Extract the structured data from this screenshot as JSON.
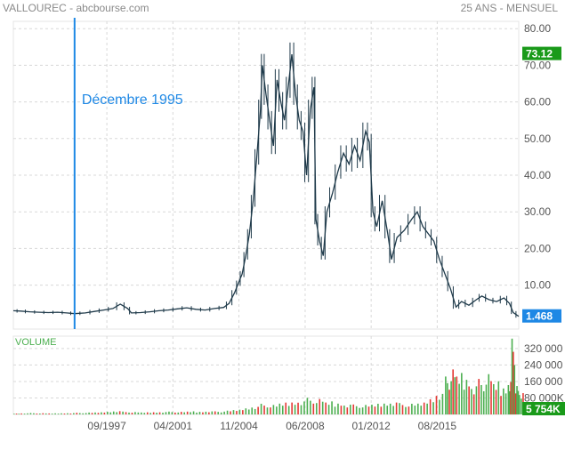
{
  "header": {
    "title": "VALLOUREC - abcbourse.com",
    "period": "25 ANS - MENSUEL"
  },
  "colors": {
    "grid": "#d8d8d8",
    "price_line": "#1f3a4a",
    "annotation": "#1e88e5",
    "volume_up": "#4caf50",
    "volume_down": "#e53935",
    "last_price_badge": "#1a9a1a",
    "last_price_badge_low": "#1e88e5",
    "volume_label": "#4caf50",
    "axis_text": "#555555"
  },
  "chart_data": [
    {
      "type": "line",
      "title": "VALLOUREC - abcbourse.com",
      "ylim": [
        -2,
        82
      ],
      "y_ticks": [
        "80.00",
        "70.00",
        "60.00",
        "50.00",
        "40.00",
        "30.00",
        "20.00",
        "10.00"
      ],
      "y_tick_values": [
        80,
        70,
        60,
        50,
        40,
        30,
        20,
        10
      ],
      "x_labels": [
        "09/1997",
        "04/2001",
        "11/2004",
        "06/2008",
        "01/2012",
        "08/2015"
      ],
      "x_label_dates": [
        1997.67,
        2001.25,
        2004.83,
        2008.42,
        2012.0,
        2015.58
      ],
      "x_range": [
        1992.6,
        2020.0
      ],
      "badges": [
        {
          "label": "73.12",
          "value": 73.12,
          "color": "#1a9a1a"
        },
        {
          "label": "1.468",
          "value": 1.468,
          "color": "#1e88e5"
        }
      ],
      "annotation": {
        "label": "Décembre 1995",
        "date": 1995.92
      },
      "points": [
        [
          1992.6,
          3.0
        ],
        [
          1993.0,
          2.9
        ],
        [
          1993.5,
          2.7
        ],
        [
          1994.0,
          2.6
        ],
        [
          1994.5,
          2.5
        ],
        [
          1995.0,
          2.6
        ],
        [
          1995.5,
          2.4
        ],
        [
          1995.92,
          2.2
        ],
        [
          1996.5,
          2.4
        ],
        [
          1997.0,
          2.8
        ],
        [
          1997.5,
          3.2
        ],
        [
          1998.0,
          3.6
        ],
        [
          1998.4,
          4.8
        ],
        [
          1998.8,
          3.6
        ],
        [
          1999.0,
          2.4
        ],
        [
          1999.5,
          2.5
        ],
        [
          2000.0,
          2.7
        ],
        [
          2000.5,
          3.0
        ],
        [
          2001.0,
          3.2
        ],
        [
          2001.5,
          3.5
        ],
        [
          2002.0,
          3.8
        ],
        [
          2002.5,
          3.4
        ],
        [
          2003.0,
          3.2
        ],
        [
          2003.5,
          3.6
        ],
        [
          2004.0,
          3.9
        ],
        [
          2004.3,
          5.0
        ],
        [
          2004.6,
          8.0
        ],
        [
          2004.8,
          10.5
        ],
        [
          2005.0,
          13.0
        ],
        [
          2005.2,
          18.0
        ],
        [
          2005.4,
          24.0
        ],
        [
          2005.6,
          33.0
        ],
        [
          2005.8,
          45.0
        ],
        [
          2006.0,
          58.0
        ],
        [
          2006.1,
          70.0
        ],
        [
          2006.3,
          62.0
        ],
        [
          2006.5,
          55.0
        ],
        [
          2006.7,
          48.0
        ],
        [
          2006.9,
          66.0
        ],
        [
          2007.1,
          60.0
        ],
        [
          2007.3,
          55.0
        ],
        [
          2007.5,
          64.0
        ],
        [
          2007.7,
          73.0
        ],
        [
          2007.9,
          62.0
        ],
        [
          2008.1,
          55.0
        ],
        [
          2008.3,
          52.0
        ],
        [
          2008.5,
          40.0
        ],
        [
          2008.7,
          58.0
        ],
        [
          2008.9,
          64.0
        ],
        [
          2009.0,
          28.0
        ],
        [
          2009.2,
          22.0
        ],
        [
          2009.4,
          18.0
        ],
        [
          2009.6,
          30.0
        ],
        [
          2009.9,
          35.0
        ],
        [
          2010.2,
          41.0
        ],
        [
          2010.5,
          46.0
        ],
        [
          2010.8,
          43.0
        ],
        [
          2011.1,
          48.0
        ],
        [
          2011.4,
          44.0
        ],
        [
          2011.7,
          52.0
        ],
        [
          2011.9,
          49.0
        ],
        [
          2012.1,
          30.0
        ],
        [
          2012.3,
          26.0
        ],
        [
          2012.6,
          33.0
        ],
        [
          2012.9,
          24.0
        ],
        [
          2013.1,
          17.0
        ],
        [
          2013.4,
          23.0
        ],
        [
          2013.8,
          25.0
        ],
        [
          2014.2,
          28.0
        ],
        [
          2014.5,
          30.0
        ],
        [
          2014.8,
          26.0
        ],
        [
          2015.1,
          24.0
        ],
        [
          2015.4,
          22.0
        ],
        [
          2015.7,
          17.0
        ],
        [
          2016.0,
          13.0
        ],
        [
          2016.3,
          9.0
        ],
        [
          2016.6,
          4.0
        ],
        [
          2016.9,
          5.5
        ],
        [
          2017.3,
          4.5
        ],
        [
          2017.7,
          6.0
        ],
        [
          2018.0,
          7.0
        ],
        [
          2018.4,
          6.0
        ],
        [
          2018.8,
          5.5
        ],
        [
          2019.2,
          6.5
        ],
        [
          2019.5,
          5.0
        ],
        [
          2019.7,
          2.5
        ],
        [
          2020.0,
          1.468
        ]
      ]
    },
    {
      "type": "bar",
      "title": "VOLUME",
      "ylim": [
        0,
        380000
      ],
      "y_ticks": [
        "320 000",
        "240 000",
        "160 000",
        "80 000K"
      ],
      "y_tick_values": [
        320000,
        240000,
        160000,
        80000
      ],
      "badge": {
        "label": "5 754K",
        "color": "#1a9a1a"
      },
      "volumes": [
        [
          1992.6,
          4000
        ],
        [
          1993.0,
          5000
        ],
        [
          1993.5,
          6000
        ],
        [
          1994.0,
          5000
        ],
        [
          1994.5,
          4500
        ],
        [
          1995.0,
          5000
        ],
        [
          1995.5,
          6000
        ],
        [
          1996.0,
          7000
        ],
        [
          1996.5,
          8000
        ],
        [
          1997.0,
          9000
        ],
        [
          1997.5,
          12000
        ],
        [
          1998.0,
          15000
        ],
        [
          1998.5,
          12000
        ],
        [
          1999.0,
          10000
        ],
        [
          1999.5,
          9000
        ],
        [
          2000.0,
          10000
        ],
        [
          2000.5,
          11000
        ],
        [
          2001.0,
          12000
        ],
        [
          2001.5,
          11000
        ],
        [
          2002.0,
          13000
        ],
        [
          2002.5,
          12000
        ],
        [
          2003.0,
          14000
        ],
        [
          2003.5,
          13000
        ],
        [
          2004.0,
          16000
        ],
        [
          2004.5,
          20000
        ],
        [
          2005.0,
          28000
        ],
        [
          2005.5,
          35000
        ],
        [
          2006.0,
          45000
        ],
        [
          2006.5,
          40000
        ],
        [
          2007.0,
          50000
        ],
        [
          2007.5,
          55000
        ],
        [
          2008.0,
          60000
        ],
        [
          2008.5,
          70000
        ],
        [
          2009.0,
          65000
        ],
        [
          2009.5,
          55000
        ],
        [
          2010.0,
          50000
        ],
        [
          2010.5,
          45000
        ],
        [
          2011.0,
          42000
        ],
        [
          2011.5,
          40000
        ],
        [
          2012.0,
          45000
        ],
        [
          2012.5,
          50000
        ],
        [
          2013.0,
          55000
        ],
        [
          2013.5,
          48000
        ],
        [
          2014.0,
          45000
        ],
        [
          2014.5,
          50000
        ],
        [
          2015.0,
          70000
        ],
        [
          2015.5,
          95000
        ],
        [
          2016.0,
          160000
        ],
        [
          2016.3,
          190000
        ],
        [
          2016.6,
          175000
        ],
        [
          2017.0,
          160000
        ],
        [
          2017.4,
          130000
        ],
        [
          2017.8,
          150000
        ],
        [
          2018.2,
          170000
        ],
        [
          2018.6,
          140000
        ],
        [
          2019.0,
          120000
        ],
        [
          2019.4,
          150000
        ],
        [
          2019.6,
          320000
        ],
        [
          2019.8,
          120000
        ],
        [
          2020.0,
          90000
        ]
      ]
    }
  ]
}
